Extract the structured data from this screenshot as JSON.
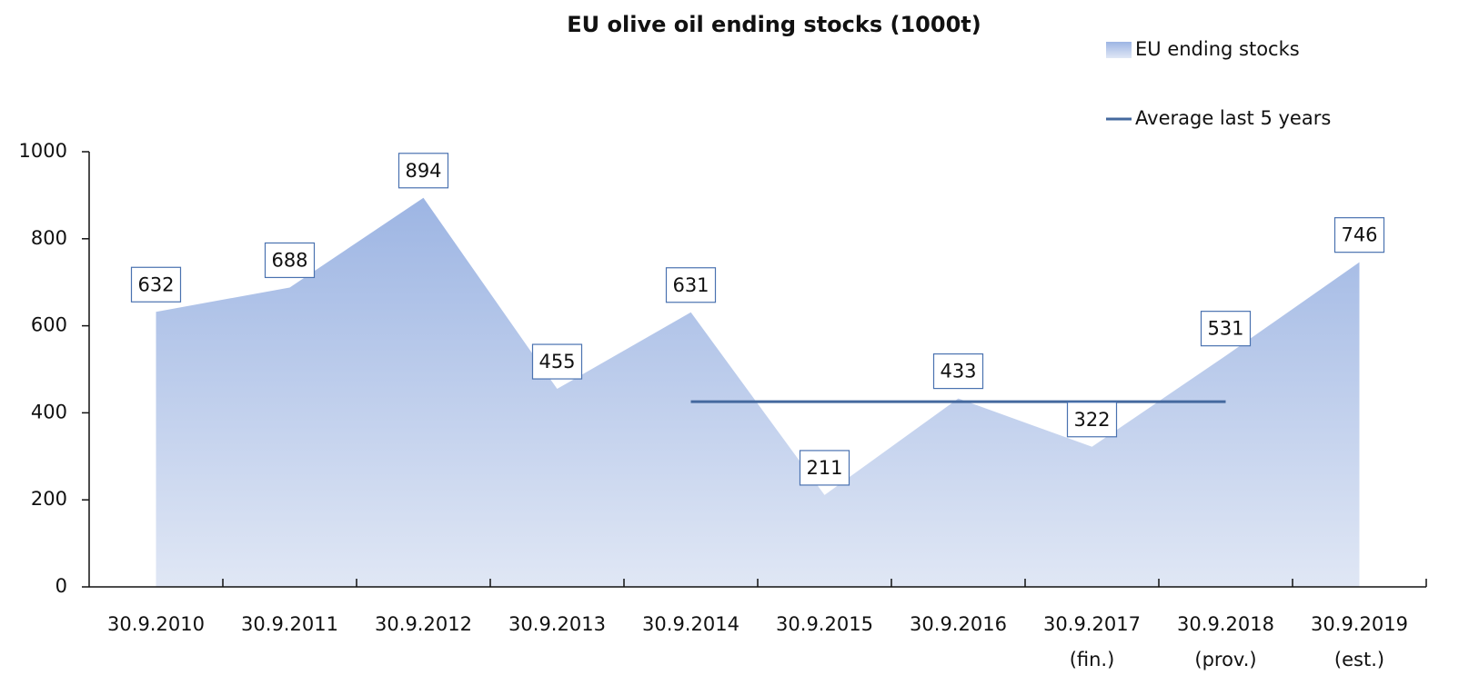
{
  "chart_data": {
    "type": "area",
    "title": "EU olive oil ending stocks (1000t)",
    "categories": [
      "30.9.2010",
      "30.9.2011",
      "30.9.2012",
      "30.9.2013",
      "30.9.2014",
      "30.9.2015",
      "30.9.2016",
      "30.9.2017",
      "30.9.2018",
      "30.9.2019"
    ],
    "category_notes": [
      null,
      null,
      null,
      null,
      null,
      null,
      null,
      "(fin.)",
      "(prov.)",
      "(est.)"
    ],
    "series": [
      {
        "name": "EU ending stocks",
        "type": "area",
        "color": "#9db5e3",
        "values": [
          632,
          688,
          894,
          455,
          631,
          211,
          433,
          322,
          531,
          746
        ]
      },
      {
        "name": "Average last 5 years",
        "type": "line",
        "color": "#44699e",
        "values": [
          null,
          null,
          null,
          null,
          425.6,
          425.6,
          425.6,
          425.6,
          425.6,
          null
        ]
      }
    ],
    "ylim": [
      0,
      1000
    ],
    "yticks": [
      0,
      200,
      400,
      600,
      800,
      1000
    ],
    "grid": false,
    "legend": "top-right"
  }
}
